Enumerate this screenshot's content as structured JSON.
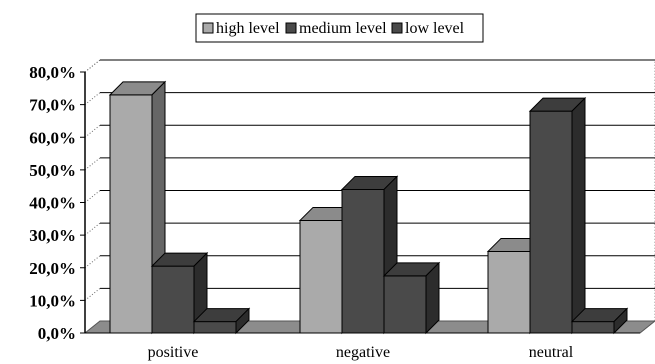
{
  "chart_data": {
    "type": "bar",
    "title": "",
    "xlabel": "",
    "ylabel": "",
    "categories": [
      "positive",
      "negative",
      "neutral"
    ],
    "series": [
      {
        "name": "high level",
        "values": [
          73.0,
          34.5,
          25.0
        ]
      },
      {
        "name": "medium level",
        "values": [
          20.5,
          44.0,
          68.0
        ]
      },
      {
        "name": "low level",
        "values": [
          3.5,
          17.5,
          3.5
        ]
      }
    ],
    "ylim": [
      0,
      80
    ],
    "y_ticks": [
      "0,0%",
      "10,0%",
      "20,0%",
      "30,0%",
      "40,0%",
      "50,0%",
      "60,0%",
      "70,0%",
      "80,0%"
    ],
    "grid": true,
    "style": "3d-clustered-bar",
    "legend_position": "top",
    "colors": {
      "high level": "#aaaaaa",
      "medium level": "#4a4a4a",
      "low level": "#4a4a4a",
      "outline": "#000000",
      "gridline": "#000000",
      "floor": "#8c8c8c"
    }
  }
}
